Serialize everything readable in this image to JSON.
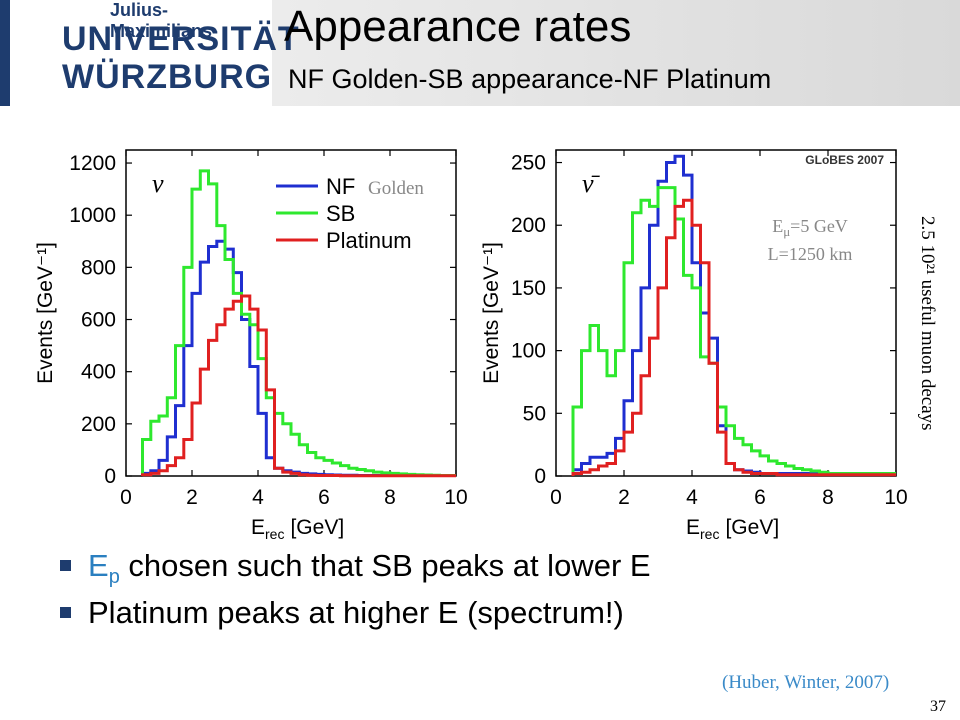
{
  "header": {
    "logo_line_small": "Julius-Maximilians-",
    "logo_line_1": "UNIVERSITÄT",
    "logo_line_2": "WÜRZBURG",
    "title": "Appearance rates",
    "subtitle": "NF Golden-SB appearance-NF Platinum"
  },
  "bullets": [
    {
      "lead": "E",
      "sub": "p",
      "rest": " chosen such that SB peaks at lower E"
    },
    {
      "lead": "",
      "sub": "",
      "rest": "Platinum peaks at higher E (spectrum!)"
    }
  ],
  "reference": "(Huber, Winter, 2007)",
  "page_number": "37",
  "side_note": "2.5 10²¹ useful muon decays",
  "colors": {
    "NF": "#1f2fd0",
    "SB": "#2ee82e",
    "Platinum": "#e02020",
    "accent": "#2a7fc0"
  },
  "chart_data": [
    {
      "type": "line",
      "step": true,
      "symbol": "ν",
      "xlabel_main": "E",
      "xlabel_sub": "rec",
      "xlabel_unit": "[GeV]",
      "ylabel": "Events [GeV⁻¹]",
      "xlim": [
        0,
        10
      ],
      "ylim": [
        0,
        1250
      ],
      "xticks": [
        0,
        2,
        4,
        6,
        8,
        10
      ],
      "yticks": [
        0,
        200,
        400,
        600,
        800,
        1000,
        1200
      ],
      "legend": {
        "placement": "top-right",
        "golden_label": "Golden"
      },
      "bin_edges": [
        0.5,
        0.75,
        1.0,
        1.25,
        1.5,
        1.75,
        2.0,
        2.25,
        2.5,
        2.75,
        3.0,
        3.25,
        3.5,
        3.75,
        4.0,
        4.25,
        4.5,
        4.75,
        5.0,
        5.25,
        5.5,
        5.75,
        6.0,
        6.25,
        6.5,
        6.75,
        7.0,
        7.25,
        7.5,
        7.75,
        8.0,
        8.25,
        8.5,
        8.75,
        9.0,
        9.25,
        9.5,
        9.75,
        10.0
      ],
      "series": [
        {
          "name": "NF",
          "color": "#1f2fd0",
          "values": [
            10,
            20,
            60,
            150,
            270,
            500,
            700,
            820,
            880,
            900,
            870,
            780,
            600,
            420,
            240,
            70,
            30,
            20,
            15,
            10,
            8,
            6,
            5,
            4,
            3,
            3,
            2,
            2,
            2,
            2,
            2,
            2,
            2,
            2,
            2,
            2,
            2,
            2
          ]
        },
        {
          "name": "SB",
          "color": "#2ee82e",
          "values": [
            140,
            210,
            230,
            300,
            500,
            800,
            1100,
            1170,
            1120,
            960,
            830,
            700,
            620,
            580,
            450,
            300,
            240,
            200,
            160,
            120,
            90,
            70,
            60,
            50,
            40,
            30,
            25,
            20,
            15,
            12,
            10,
            8,
            6,
            5,
            4,
            3,
            2,
            2
          ]
        },
        {
          "name": "Platinum",
          "color": "#e02020",
          "values": [
            5,
            10,
            20,
            40,
            70,
            140,
            280,
            410,
            520,
            580,
            640,
            670,
            690,
            640,
            560,
            330,
            30,
            15,
            10,
            5,
            3,
            2,
            2,
            2,
            1,
            1,
            1,
            1,
            1,
            1,
            1,
            1,
            1,
            1,
            1,
            1,
            1,
            1
          ]
        }
      ]
    },
    {
      "type": "line",
      "step": true,
      "symbol": "ν̄",
      "xlabel_main": "E",
      "xlabel_sub": "rec",
      "xlabel_unit": "[GeV]",
      "ylabel": "Events [GeV⁻¹]",
      "xlim": [
        0,
        10
      ],
      "ylim": [
        0,
        260
      ],
      "xticks": [
        0,
        2,
        4,
        6,
        8,
        10
      ],
      "yticks": [
        0,
        50,
        100,
        150,
        200,
        250
      ],
      "annotation_top": "GLoBES 2007",
      "annotation_energy": "E",
      "annotation_energy_sub": "μ",
      "annotation_energy_rest": "=5 GeV",
      "annotation_baseline": "L=1250 km",
      "bin_edges": [
        0.5,
        0.75,
        1.0,
        1.25,
        1.5,
        1.75,
        2.0,
        2.25,
        2.5,
        2.75,
        3.0,
        3.25,
        3.5,
        3.75,
        4.0,
        4.25,
        4.5,
        4.75,
        5.0,
        5.25,
        5.5,
        5.75,
        6.0,
        6.25,
        6.5,
        6.75,
        7.0,
        7.25,
        7.5,
        7.75,
        8.0,
        8.25,
        8.5,
        8.75,
        9.0,
        9.25,
        9.5,
        9.75,
        10.0
      ],
      "series": [
        {
          "name": "NF",
          "color": "#1f2fd0",
          "values": [
            5,
            10,
            15,
            15,
            18,
            30,
            60,
            100,
            150,
            200,
            235,
            250,
            255,
            240,
            170,
            130,
            110,
            40,
            10,
            5,
            4,
            3,
            2,
            2,
            2,
            2,
            2,
            2,
            2,
            2,
            2,
            2,
            2,
            2,
            2,
            2,
            2,
            2
          ]
        },
        {
          "name": "SB",
          "color": "#2ee82e",
          "values": [
            55,
            100,
            120,
            100,
            80,
            100,
            170,
            210,
            220,
            215,
            230,
            230,
            205,
            160,
            150,
            95,
            90,
            55,
            40,
            30,
            25,
            20,
            16,
            12,
            10,
            8,
            6,
            5,
            4,
            3,
            2,
            2,
            2,
            2,
            2,
            2,
            2,
            2
          ]
        },
        {
          "name": "Platinum",
          "color": "#e02020",
          "values": [
            2,
            3,
            5,
            8,
            10,
            20,
            35,
            50,
            80,
            110,
            150,
            190,
            215,
            220,
            200,
            170,
            90,
            35,
            10,
            5,
            3,
            2,
            2,
            2,
            1,
            1,
            1,
            1,
            1,
            1,
            1,
            1,
            1,
            1,
            1,
            1,
            1,
            1
          ]
        }
      ]
    }
  ]
}
